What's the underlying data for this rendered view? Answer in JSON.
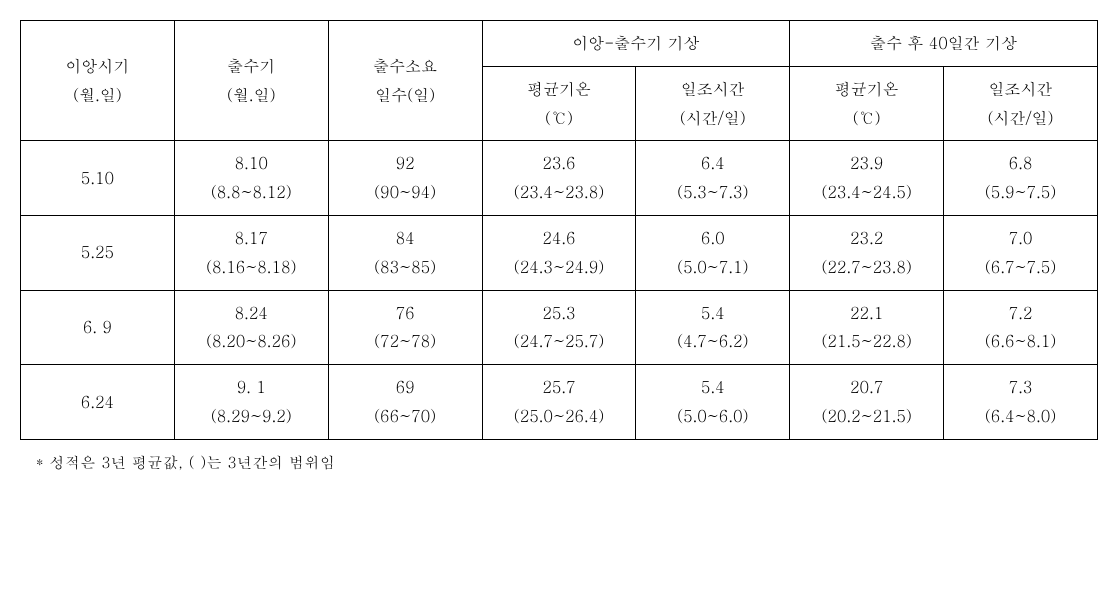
{
  "headers": {
    "col1_line1": "이앙시기",
    "col1_line2": "(월.일)",
    "col2_line1": "출수기",
    "col2_line2": "(월.일)",
    "col3_line1": "출수소요",
    "col3_line2": "일수(일)",
    "group1": "이앙-출수기 기상",
    "group2": "출수 후 40일간 기상",
    "sub_temp_line1": "평균기온",
    "sub_temp_line2": "(℃)",
    "sub_sun_line1": "일조시간",
    "sub_sun_line2": "(시간/일)"
  },
  "rows": [
    {
      "c1": "5.10",
      "c2_v": "8.10",
      "c2_r": "(8.8~8.12)",
      "c3_v": "92",
      "c3_r": "(90~94)",
      "c4_v": "23.6",
      "c4_r": "(23.4~23.8)",
      "c5_v": "6.4",
      "c5_r": "(5.3~7.3)",
      "c6_v": "23.9",
      "c6_r": "(23.4~24.5)",
      "c7_v": "6.8",
      "c7_r": "(5.9~7.5)"
    },
    {
      "c1": "5.25",
      "c2_v": "8.17",
      "c2_r": "(8.16~8.18)",
      "c3_v": "84",
      "c3_r": "(83~85)",
      "c4_v": "24.6",
      "c4_r": "(24.3~24.9)",
      "c5_v": "6.0",
      "c5_r": "(5.0~7.1)",
      "c6_v": "23.2",
      "c6_r": "(22.7~23.8)",
      "c7_v": "7.0",
      "c7_r": "(6.7~7.5)"
    },
    {
      "c1": "6.  9",
      "c2_v": "8.24",
      "c2_r": "(8.20~8.26)",
      "c3_v": "76",
      "c3_r": "(72~78)",
      "c4_v": "25.3",
      "c4_r": "(24.7~25.7)",
      "c5_v": "5.4",
      "c5_r": "(4.7~6.2)",
      "c6_v": "22.1",
      "c6_r": "(21.5~22.8)",
      "c7_v": "7.2",
      "c7_r": "(6.6~8.1)"
    },
    {
      "c1": "6.24",
      "c2_v": "9.  1",
      "c2_r": "(8.29~9.2)",
      "c3_v": "69",
      "c3_r": "(66~70)",
      "c4_v": "25.7",
      "c4_r": "(25.0~26.4)",
      "c5_v": "5.4",
      "c5_r": "(5.0~6.0)",
      "c6_v": "20.7",
      "c6_r": "(20.2~21.5)",
      "c7_v": "7.3",
      "c7_r": "(6.4~8.0)"
    }
  ],
  "footnote": "* 성적은 3년 평균값, ( )는 3년간의  범위임"
}
